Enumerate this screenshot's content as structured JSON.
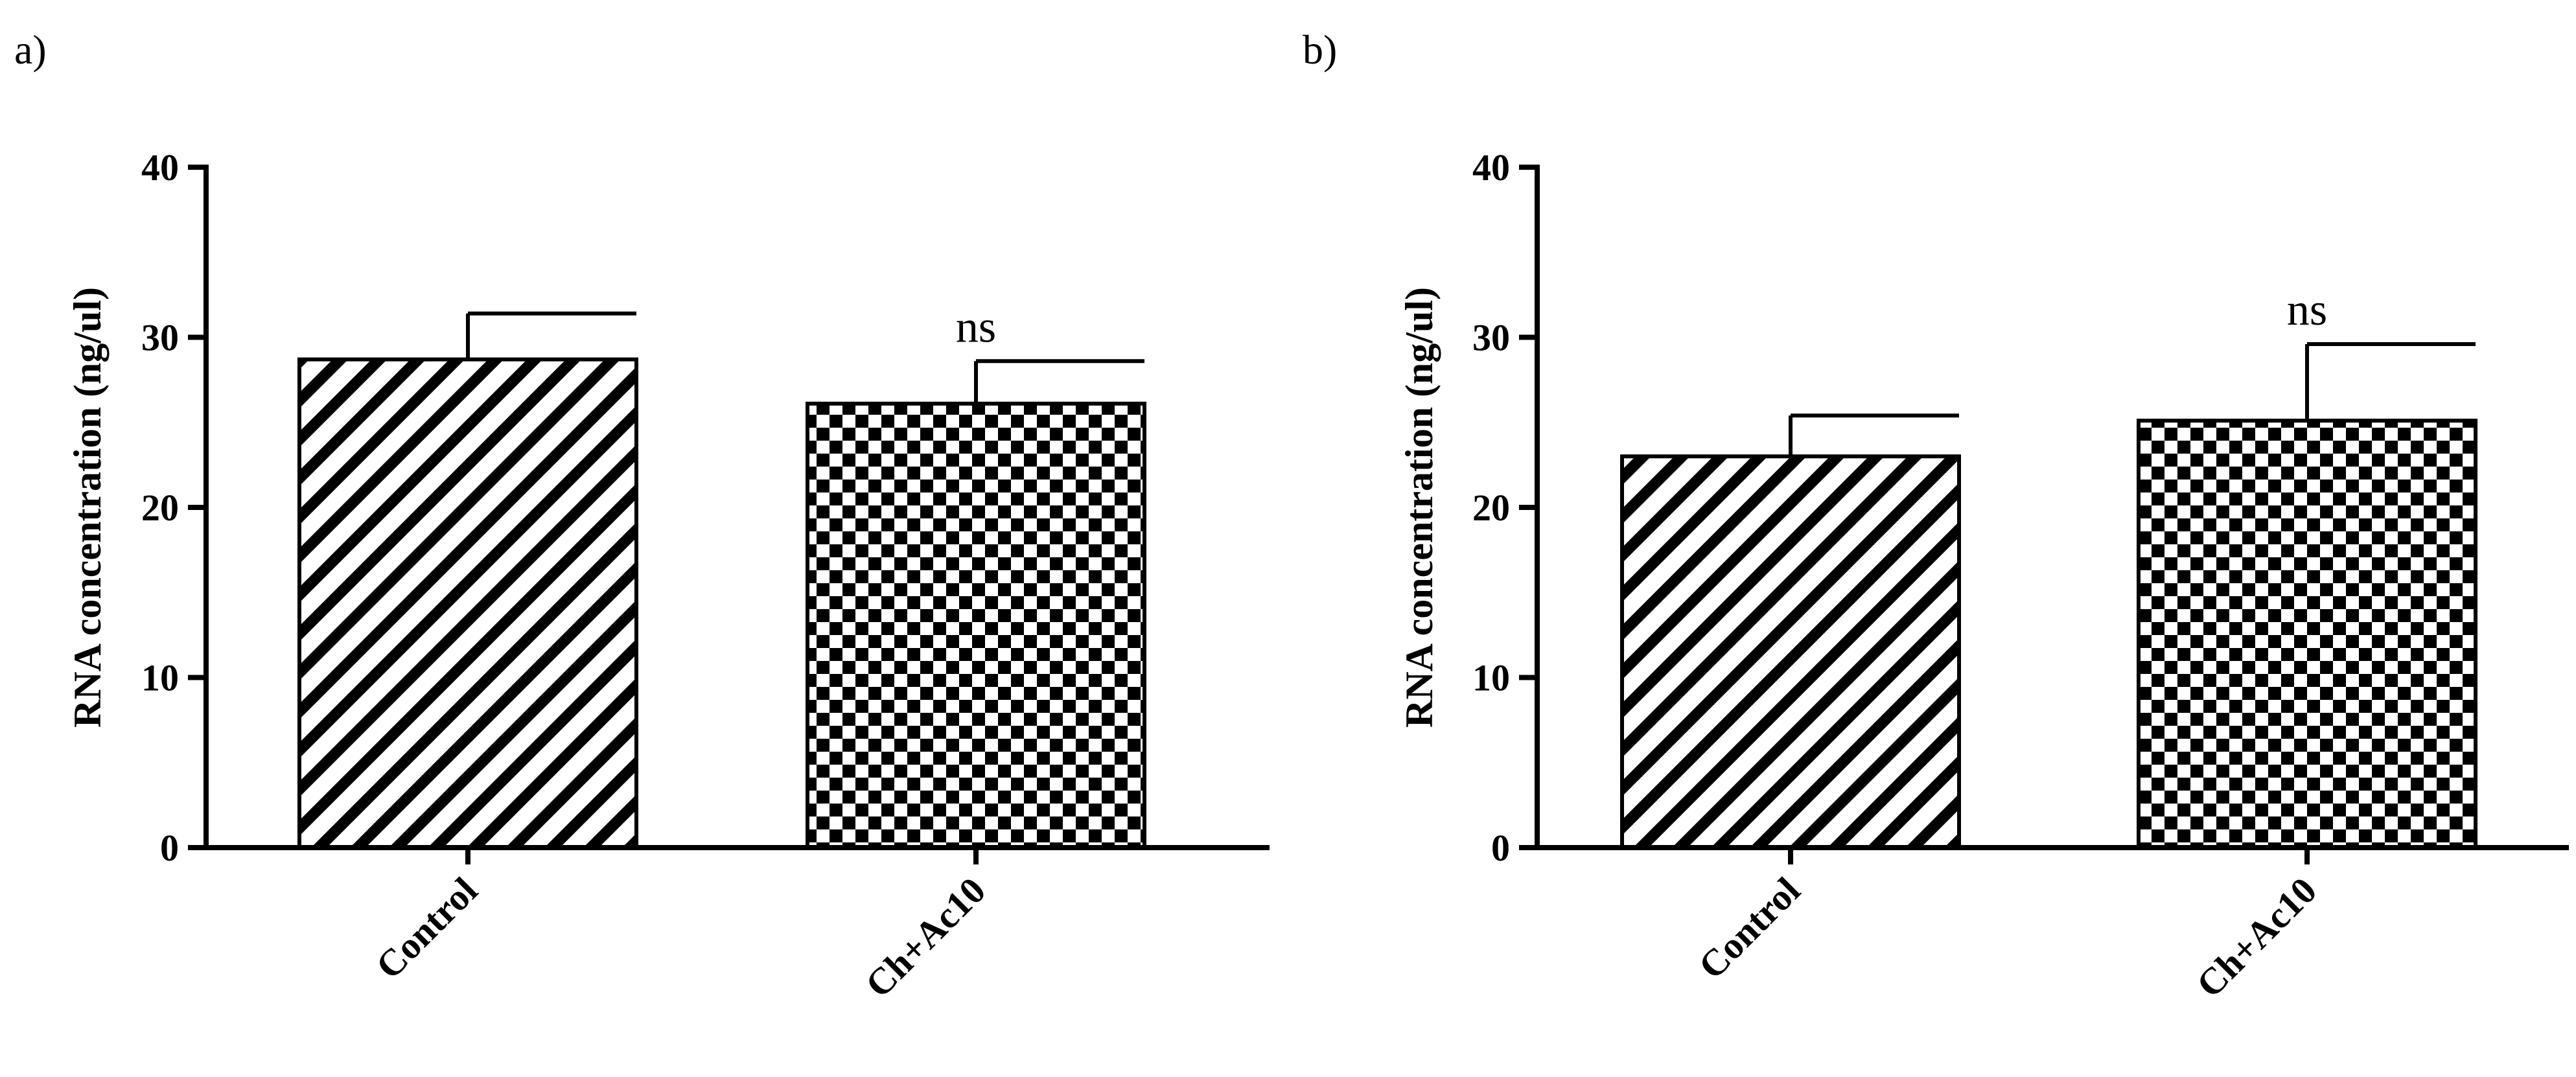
{
  "chart_data": [
    {
      "type": "bar",
      "panel_label": "a)",
      "categories": [
        "Control",
        "Ch+Ac10"
      ],
      "values": [
        28.7,
        26.1
      ],
      "errors": [
        2.7,
        2.5
      ],
      "patterns": [
        "diagonal-stripes",
        "checkerboard"
      ],
      "annotations": [
        "",
        "ns"
      ],
      "ylabel": "RNA concentration (ng/ul)",
      "ylim": [
        0,
        40
      ],
      "yticks": [
        0,
        10,
        20,
        30,
        40
      ],
      "grid": false
    },
    {
      "type": "bar",
      "panel_label": "b)",
      "categories": [
        "Control",
        "Ch+Ac10"
      ],
      "values": [
        23.0,
        25.1
      ],
      "errors": [
        2.4,
        4.5
      ],
      "patterns": [
        "diagonal-stripes",
        "checkerboard"
      ],
      "annotations": [
        "",
        "ns"
      ],
      "ylabel": "RNA concentration (ng/ul)",
      "ylim": [
        0,
        40
      ],
      "yticks": [
        0,
        10,
        20,
        30,
        40
      ],
      "grid": false
    }
  ]
}
